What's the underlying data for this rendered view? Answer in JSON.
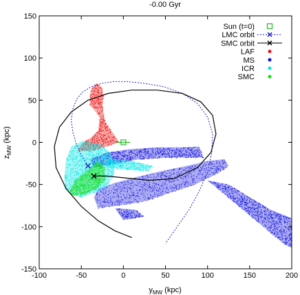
{
  "chart_data": {
    "type": "scatter",
    "title": "-0.00 Gyr",
    "xlabel": "y",
    "xlabel_sub": "MW",
    "xlabel_unit": " (kpc)",
    "ylabel": "z",
    "ylabel_sub": "MW",
    "ylabel_unit": " (kpc)",
    "xlim": [
      -100,
      200
    ],
    "ylim": [
      -150,
      150
    ],
    "xticks": [
      -100,
      -50,
      0,
      50,
      100,
      150,
      200
    ],
    "yticks": [
      -150,
      -100,
      -50,
      0,
      50,
      100,
      150
    ],
    "grid": false,
    "legend_position": "top-right",
    "legend": [
      {
        "label": "Sun (t=0)",
        "kind": "open-square",
        "color": "#22bb22"
      },
      {
        "label": "LMC orbit",
        "kind": "dashed-line-x",
        "color": "#2222cc"
      },
      {
        "label": "SMC orbit",
        "kind": "solid-line-x",
        "color": "#000000"
      },
      {
        "label": "LAF",
        "kind": "dot",
        "color": "#ee1111"
      },
      {
        "label": "MS",
        "kind": "dot",
        "color": "#1111dd"
      },
      {
        "label": "ICR",
        "kind": "dot",
        "color": "#00e5e5"
      },
      {
        "label": "SMC",
        "kind": "dot",
        "color": "#11dd11"
      }
    ],
    "sun": {
      "x": 0,
      "y": 0,
      "error_x": 8
    },
    "lmc_current": {
      "x": -42,
      "y": -28
    },
    "smc_current": {
      "x": -35,
      "y": -40
    },
    "lmc_orbit": {
      "x": [
        -42,
        -50,
        -56,
        -60,
        -62,
        -60,
        -55,
        -48,
        -38,
        -26,
        -12,
        5,
        25,
        48,
        70,
        88,
        100,
        106,
        105,
        100,
        90,
        78,
        64,
        50
      ],
      "y": [
        -28,
        -15,
        -2,
        12,
        26,
        40,
        52,
        60,
        66,
        70,
        72,
        72,
        70,
        66,
        58,
        46,
        30,
        10,
        -12,
        -35,
        -58,
        -80,
        -100,
        -120
      ]
    },
    "smc_orbit": {
      "x": [
        10,
        -10,
        -30,
        -50,
        -68,
        -80,
        -82,
        -76,
        -62,
        -42,
        -18,
        10,
        40,
        70,
        92,
        106,
        110,
        104,
        88,
        60,
        30,
        0,
        -20,
        -30,
        -35
      ],
      "y": [
        -113,
        -105,
        -93,
        -76,
        -55,
        -30,
        -5,
        18,
        36,
        50,
        58,
        62,
        62,
        58,
        48,
        32,
        10,
        -12,
        -30,
        -43,
        -45,
        -42,
        -40,
        -40,
        -40
      ]
    },
    "clouds": [
      {
        "name": "MS",
        "color": "#1111dd",
        "polygons": [
          [
            [
              -30,
              -55
            ],
            [
              -10,
              -48
            ],
            [
              20,
              -40
            ],
            [
              50,
              -33
            ],
            [
              80,
              -27
            ],
            [
              100,
              -22
            ],
            [
              120,
              -20
            ],
            [
              125,
              -28
            ],
            [
              110,
              -38
            ],
            [
              85,
              -50
            ],
            [
              55,
              -60
            ],
            [
              25,
              -70
            ],
            [
              -5,
              -75
            ],
            [
              -30,
              -78
            ],
            [
              -35,
              -65
            ]
          ],
          [
            [
              -40,
              -20
            ],
            [
              -20,
              -12
            ],
            [
              10,
              -8
            ],
            [
              40,
              -6
            ],
            [
              70,
              -6
            ],
            [
              90,
              -5
            ],
            [
              95,
              -18
            ],
            [
              80,
              -18
            ],
            [
              50,
              -18
            ],
            [
              20,
              -20
            ],
            [
              -10,
              -25
            ],
            [
              -35,
              -30
            ]
          ],
          [
            [
              100,
              -45
            ],
            [
              130,
              -70
            ],
            [
              160,
              -95
            ],
            [
              190,
              -120
            ],
            [
              200,
              -125
            ],
            [
              200,
              -90
            ],
            [
              175,
              -80
            ],
            [
              150,
              -65
            ],
            [
              125,
              -50
            ]
          ],
          [
            [
              -10,
              -78
            ],
            [
              15,
              -80
            ],
            [
              25,
              -88
            ],
            [
              0,
              -92
            ]
          ]
        ]
      },
      {
        "name": "LAF",
        "color": "#ee1111",
        "polygons": [
          [
            [
              -55,
              -10
            ],
            [
              -48,
              0
            ],
            [
              -38,
              6
            ],
            [
              -30,
              14
            ],
            [
              -28,
              30
            ],
            [
              -40,
              45
            ],
            [
              -40,
              55
            ],
            [
              -38,
              64
            ],
            [
              -32,
              70
            ],
            [
              -26,
              66
            ],
            [
              -24,
              55
            ],
            [
              -25,
              42
            ],
            [
              -22,
              25
            ],
            [
              -12,
              10
            ],
            [
              -5,
              0
            ],
            [
              -20,
              -5
            ],
            [
              -40,
              -10
            ]
          ]
        ]
      },
      {
        "name": "ICR",
        "color": "#00e5e5",
        "polygons": [
          [
            [
              -70,
              -40
            ],
            [
              -68,
              -20
            ],
            [
              -62,
              -5
            ],
            [
              -48,
              2
            ],
            [
              -28,
              -2
            ],
            [
              -18,
              -10
            ],
            [
              -10,
              -25
            ],
            [
              -12,
              -40
            ],
            [
              -20,
              -52
            ],
            [
              -35,
              -60
            ],
            [
              -50,
              -65
            ],
            [
              -62,
              -62
            ],
            [
              -70,
              -55
            ]
          ],
          [
            [
              -20,
              -20
            ],
            [
              10,
              -22
            ],
            [
              35,
              -28
            ],
            [
              30,
              -34
            ],
            [
              0,
              -32
            ],
            [
              -20,
              -30
            ]
          ]
        ]
      },
      {
        "name": "SMC",
        "color": "#11dd11",
        "polygons": [
          [
            [
              -65,
              -60
            ],
            [
              -58,
              -45
            ],
            [
              -45,
              -35
            ],
            [
              -30,
              -22
            ],
            [
              -22,
              -30
            ],
            [
              -22,
              -45
            ],
            [
              -32,
              -55
            ],
            [
              -48,
              -62
            ],
            [
              -60,
              -63
            ]
          ]
        ]
      }
    ]
  }
}
